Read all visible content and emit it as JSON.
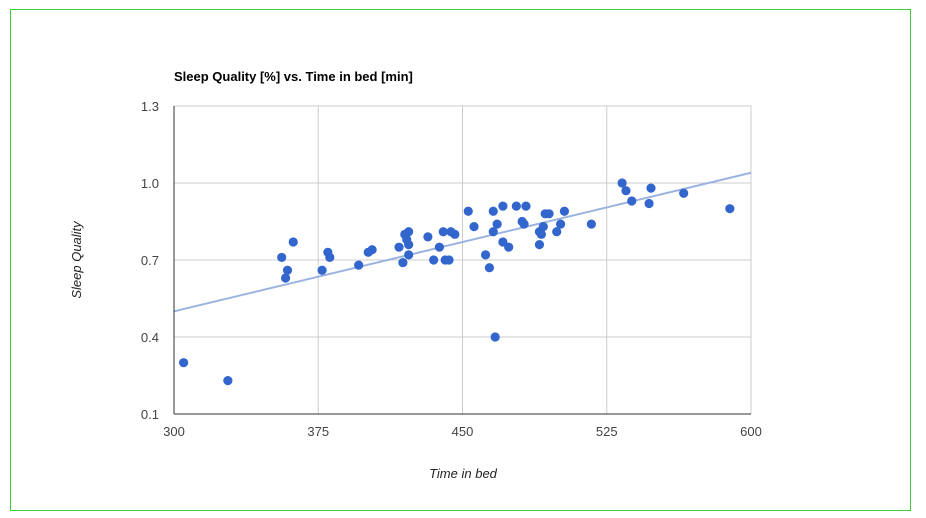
{
  "chart_data": {
    "type": "scatter",
    "title": "Sleep Quality [%] vs. Time in bed [min]",
    "xlabel": "Time in bed",
    "ylabel": "Sleep Quality",
    "xlim": [
      300,
      600
    ],
    "ylim": [
      0.1,
      1.3
    ],
    "xticks": [
      "300",
      "375",
      "450",
      "525",
      "600"
    ],
    "yticks": [
      "0.1",
      "0.4",
      "0.7",
      "1.0",
      "1.3"
    ],
    "grid": true,
    "legend": "none",
    "colors": {
      "points": "#3366cc",
      "trendline": "#9ab3e0",
      "grid": "#cccccc",
      "axis": "#333333",
      "frame": "#3ccc3c"
    },
    "trendline": {
      "type": "linear",
      "start": [
        300,
        0.5
      ],
      "end": [
        600,
        1.04
      ]
    },
    "series": [
      {
        "points": [
          [
            305,
            0.3
          ],
          [
            328,
            0.23
          ],
          [
            356,
            0.71
          ],
          [
            358,
            0.63
          ],
          [
            359,
            0.66
          ],
          [
            362,
            0.77
          ],
          [
            377,
            0.66
          ],
          [
            380,
            0.73
          ],
          [
            381,
            0.71
          ],
          [
            396,
            0.68
          ],
          [
            401,
            0.73
          ],
          [
            403,
            0.74
          ],
          [
            417,
            0.75
          ],
          [
            419,
            0.69
          ],
          [
            420,
            0.8
          ],
          [
            421,
            0.78
          ],
          [
            422,
            0.81
          ],
          [
            422,
            0.76
          ],
          [
            422,
            0.72
          ],
          [
            432,
            0.79
          ],
          [
            435,
            0.7
          ],
          [
            438,
            0.75
          ],
          [
            440,
            0.81
          ],
          [
            441,
            0.7
          ],
          [
            443,
            0.7
          ],
          [
            444,
            0.81
          ],
          [
            446,
            0.8
          ],
          [
            453,
            0.89
          ],
          [
            456,
            0.83
          ],
          [
            462,
            0.72
          ],
          [
            464,
            0.67
          ],
          [
            466,
            0.81
          ],
          [
            466,
            0.89
          ],
          [
            467,
            0.4
          ],
          [
            468,
            0.84
          ],
          [
            471,
            0.91
          ],
          [
            471,
            0.77
          ],
          [
            474,
            0.75
          ],
          [
            478,
            0.91
          ],
          [
            481,
            0.85
          ],
          [
            482,
            0.84
          ],
          [
            483,
            0.91
          ],
          [
            490,
            0.81
          ],
          [
            490,
            0.76
          ],
          [
            491,
            0.8
          ],
          [
            492,
            0.83
          ],
          [
            493,
            0.88
          ],
          [
            495,
            0.88
          ],
          [
            499,
            0.81
          ],
          [
            501,
            0.84
          ],
          [
            503,
            0.89
          ],
          [
            517,
            0.84
          ],
          [
            533,
            1.0
          ],
          [
            535,
            0.97
          ],
          [
            538,
            0.93
          ],
          [
            547,
            0.92
          ],
          [
            548,
            0.98
          ],
          [
            565,
            0.96
          ],
          [
            589,
            0.9
          ]
        ]
      }
    ]
  }
}
